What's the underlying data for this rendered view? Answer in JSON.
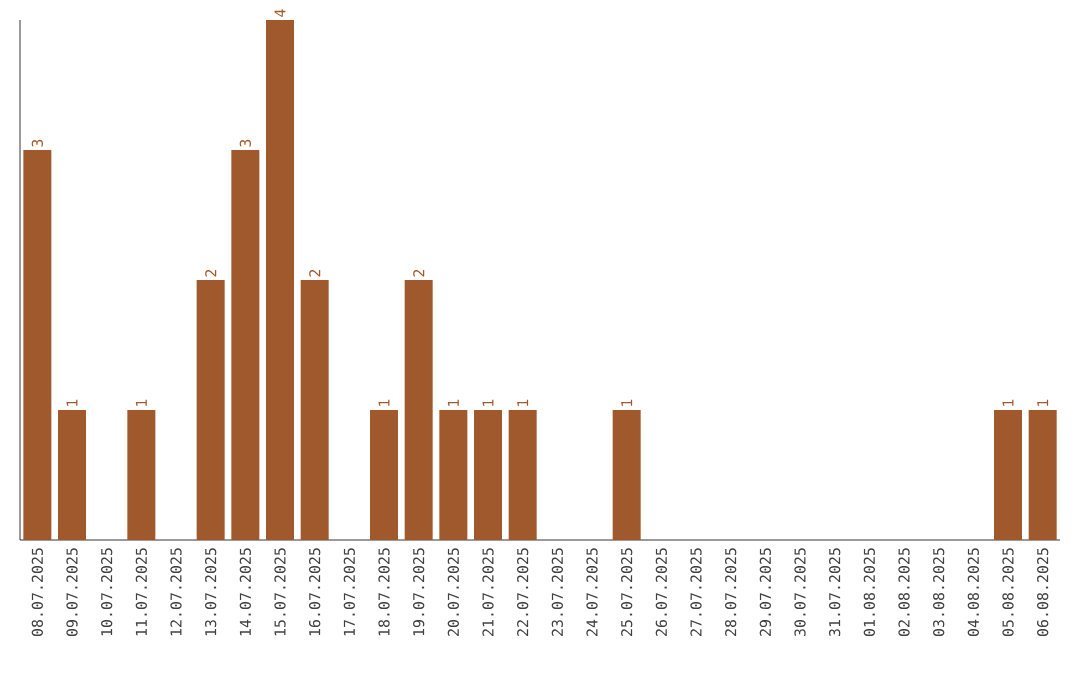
{
  "chart_data": {
    "type": "bar",
    "categories": [
      "08.07.2025",
      "09.07.2025",
      "10.07.2025",
      "11.07.2025",
      "12.07.2025",
      "13.07.2025",
      "14.07.2025",
      "15.07.2025",
      "16.07.2025",
      "17.07.2025",
      "18.07.2025",
      "19.07.2025",
      "20.07.2025",
      "21.07.2025",
      "22.07.2025",
      "23.07.2025",
      "24.07.2025",
      "25.07.2025",
      "26.07.2025",
      "27.07.2025",
      "28.07.2025",
      "29.07.2025",
      "30.07.2025",
      "31.07.2025",
      "01.08.2025",
      "02.08.2025",
      "03.08.2025",
      "04.08.2025",
      "05.08.2025",
      "06.08.2025"
    ],
    "values": [
      3,
      1,
      0,
      1,
      0,
      2,
      3,
      4,
      2,
      0,
      1,
      2,
      1,
      1,
      1,
      0,
      0,
      1,
      0,
      0,
      0,
      0,
      0,
      0,
      0,
      0,
      0,
      0,
      1,
      1
    ],
    "value_labels": [
      "3",
      "1",
      null,
      "1",
      null,
      "2",
      "3",
      "4",
      "2",
      null,
      "1",
      "2",
      "1",
      "1",
      "1",
      null,
      null,
      "1",
      null,
      null,
      null,
      null,
      null,
      null,
      null,
      null,
      null,
      null,
      "1",
      "1"
    ],
    "color": "#a0592d",
    "tick_labels": "x"
  }
}
